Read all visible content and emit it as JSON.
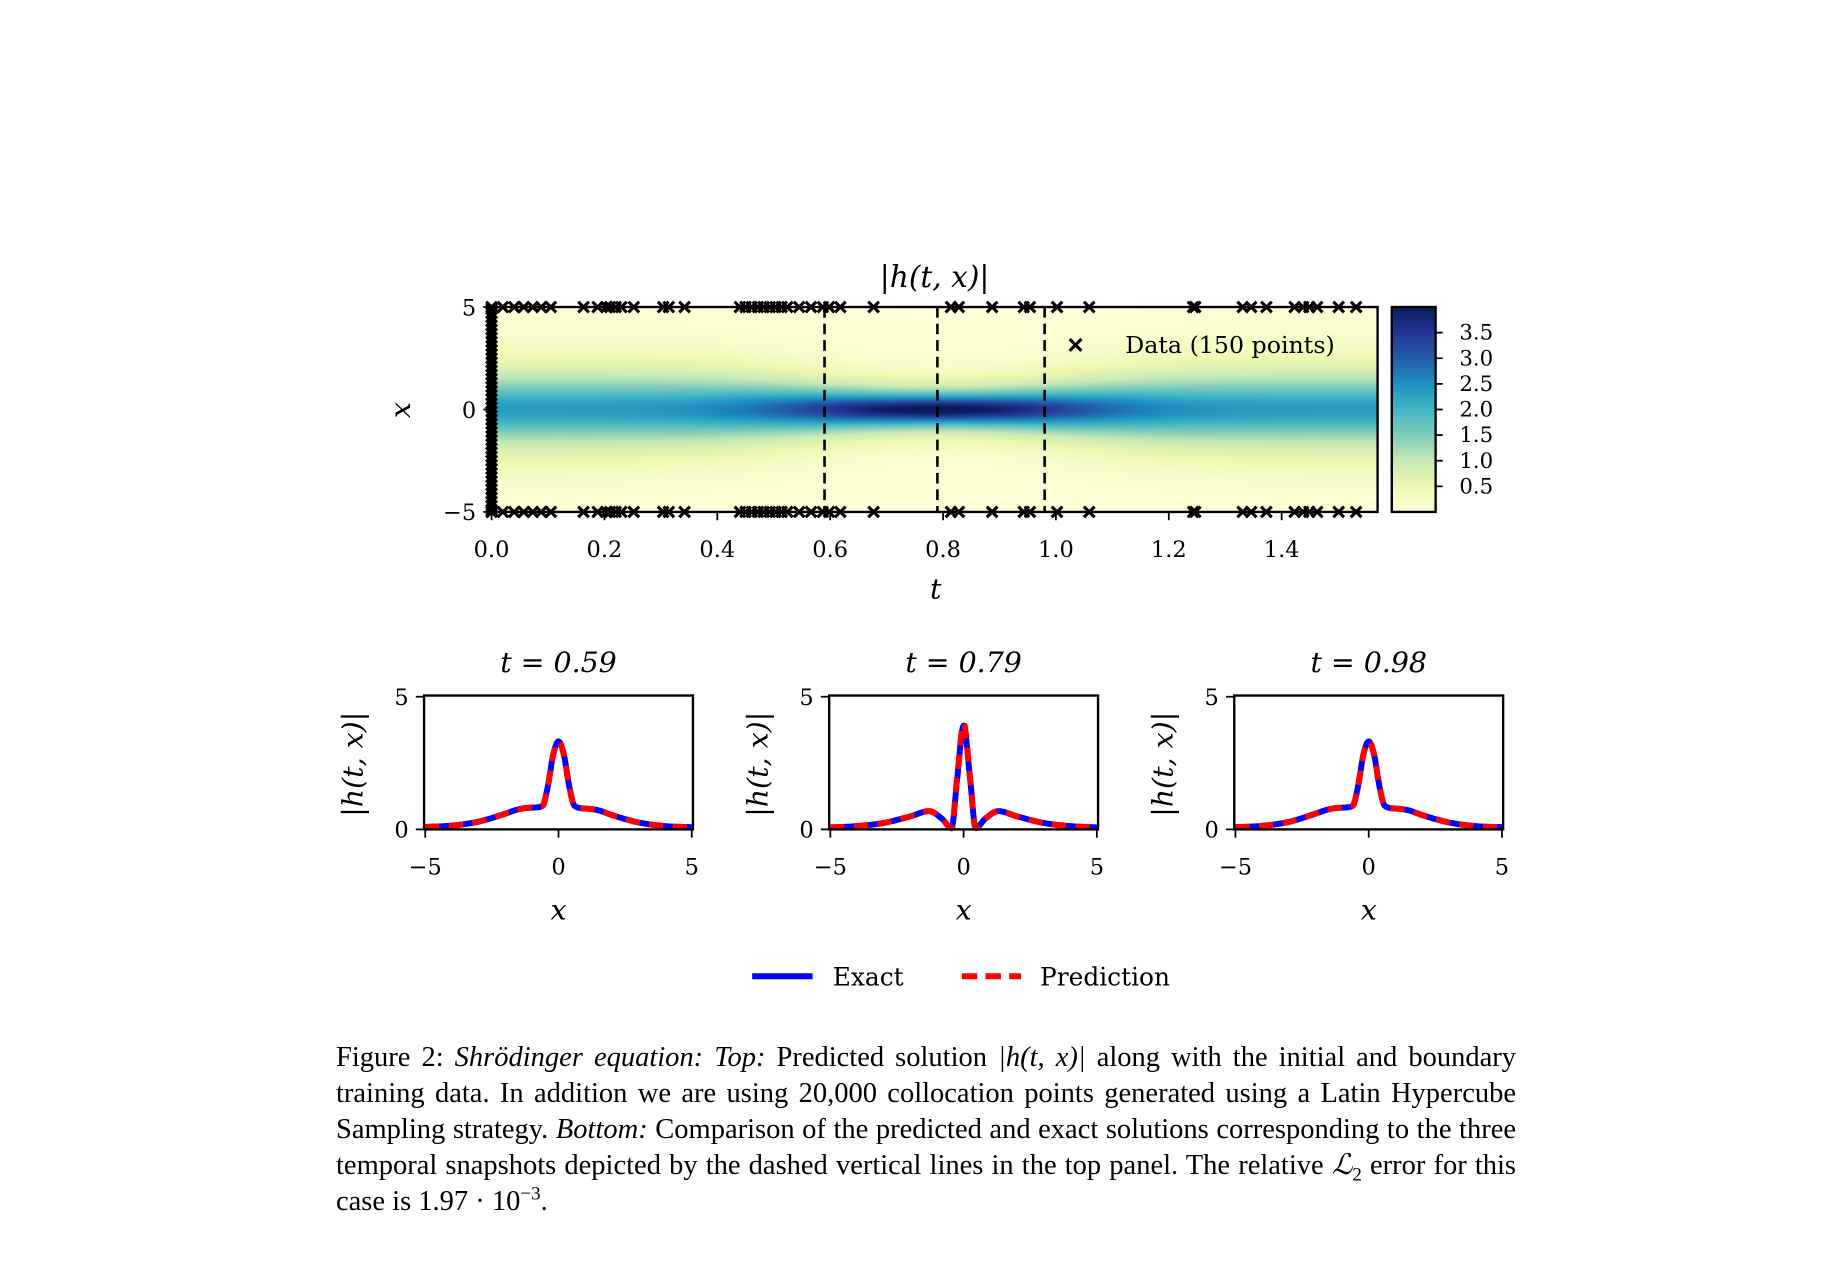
{
  "chart_data": [
    {
      "type": "heatmap",
      "title": "|h(t, x)|",
      "xlabel": "t",
      "ylabel": "x",
      "xlim": [
        0,
        1.57
      ],
      "ylim": [
        -5,
        5
      ],
      "xticks": [
        "0.0",
        "0.2",
        "0.4",
        "0.6",
        "0.8",
        "1.0",
        "1.2",
        "1.4"
      ],
      "xtick_values": [
        0,
        0.2,
        0.4,
        0.6,
        0.8,
        1.0,
        1.2,
        1.4
      ],
      "yticks": [
        "−5",
        "0",
        "5"
      ],
      "ytick_values": [
        -5,
        0,
        5
      ],
      "colormap": "YlGnBu",
      "colorbar": {
        "range": [
          0,
          4.0
        ],
        "ticks": [
          "0.5",
          "1.0",
          "1.5",
          "2.0",
          "2.5",
          "3.0",
          "3.5"
        ],
        "tick_values": [
          0.5,
          1.0,
          1.5,
          2.0,
          2.5,
          3.0,
          3.5
        ]
      },
      "peak_time": 0.79,
      "dashed_lines_t": [
        0.59,
        0.79,
        0.98
      ],
      "legend": {
        "label": "Data (150 points)",
        "marker": "x",
        "placement": "upper-right"
      },
      "data_points": {
        "initial_x_at_t0": [
          -4.9,
          -4.7,
          -4.5,
          -4.3,
          -4.1,
          -3.9,
          -3.7,
          -3.5,
          -3.3,
          -3.1,
          -2.9,
          -2.7,
          -2.5,
          -2.3,
          -2.1,
          -1.9,
          -1.7,
          -1.5,
          -1.3,
          -1.1,
          -0.9,
          -0.7,
          -0.5,
          -0.3,
          -0.1,
          0.1,
          0.3,
          0.5,
          0.7,
          0.9,
          1.1,
          1.3,
          1.5,
          1.7,
          1.9,
          2.1,
          2.3,
          2.5,
          2.7,
          2.9,
          3.1,
          3.3,
          3.5,
          3.7,
          3.9,
          4.1,
          4.3,
          4.5,
          4.7,
          4.9
        ],
        "boundary_t_at_x_pm5": [
          0.0,
          0.02,
          0.04,
          0.057,
          0.073,
          0.088,
          0.105,
          0.163,
          0.188,
          0.203,
          0.21,
          0.22,
          0.23,
          0.252,
          0.304,
          0.314,
          0.342,
          0.44,
          0.45,
          0.461,
          0.472,
          0.482,
          0.493,
          0.503,
          0.514,
          0.524,
          0.545,
          0.566,
          0.587,
          0.598,
          0.618,
          0.677,
          0.814,
          0.828,
          0.887,
          0.943,
          0.954,
          1.002,
          1.059,
          1.243,
          1.247,
          1.331,
          1.346,
          1.373,
          1.423,
          1.438,
          1.449,
          1.463,
          1.501,
          1.532
        ]
      }
    },
    {
      "type": "line",
      "title": "t = 0.59",
      "xlabel": "x",
      "ylabel": "|h(t, x)|",
      "xlim": [
        -5,
        5
      ],
      "ylim": [
        0,
        5
      ],
      "xticks": [
        "−5",
        "0",
        "5"
      ],
      "xtick_values": [
        -5,
        0,
        5
      ],
      "yticks": [
        "0",
        "5"
      ],
      "ytick_values": [
        0,
        5
      ],
      "x": [
        -5,
        -4,
        -3,
        -2,
        -1.5,
        -1,
        -0.6,
        -0.4,
        -0.2,
        0,
        0.2,
        0.4,
        0.6,
        1,
        1.5,
        2,
        3,
        4,
        5
      ],
      "series": [
        {
          "name": "Exact",
          "color": "#0000ff",
          "style": "solid",
          "y": [
            0.05,
            0.1,
            0.25,
            0.55,
            0.72,
            0.78,
            0.85,
            1.6,
            2.8,
            3.3,
            2.8,
            1.6,
            0.85,
            0.75,
            0.68,
            0.5,
            0.22,
            0.08,
            0.04
          ]
        },
        {
          "name": "Prediction",
          "color": "#ff0000",
          "style": "dashed",
          "y": [
            0.05,
            0.1,
            0.25,
            0.55,
            0.72,
            0.78,
            0.85,
            1.6,
            2.8,
            3.3,
            2.8,
            1.6,
            0.85,
            0.75,
            0.68,
            0.5,
            0.22,
            0.08,
            0.04
          ]
        }
      ]
    },
    {
      "type": "line",
      "title": "t = 0.79",
      "xlabel": "x",
      "ylabel": "|h(t, x)|",
      "xlim": [
        -5,
        5
      ],
      "ylim": [
        0,
        5
      ],
      "xticks": [
        "−5",
        "0",
        "5"
      ],
      "xtick_values": [
        -5,
        0,
        5
      ],
      "yticks": [
        "0",
        "5"
      ],
      "ytick_values": [
        0,
        5
      ],
      "x": [
        -5,
        -4,
        -3,
        -2,
        -1.3,
        -0.8,
        -0.45,
        -0.25,
        0,
        0.25,
        0.45,
        0.8,
        1.3,
        2,
        3,
        4,
        5
      ],
      "series": [
        {
          "name": "Exact",
          "color": "#0000ff",
          "style": "solid",
          "y": [
            0.03,
            0.08,
            0.2,
            0.45,
            0.65,
            0.35,
            0.0,
            1.8,
            3.9,
            1.8,
            0.0,
            0.35,
            0.65,
            0.45,
            0.2,
            0.08,
            0.03
          ]
        },
        {
          "name": "Prediction",
          "color": "#ff0000",
          "style": "dashed",
          "y": [
            0.03,
            0.08,
            0.2,
            0.45,
            0.65,
            0.35,
            0.0,
            1.85,
            4.0,
            1.85,
            0.0,
            0.35,
            0.65,
            0.45,
            0.2,
            0.08,
            0.03
          ]
        }
      ]
    },
    {
      "type": "line",
      "title": "t = 0.98",
      "xlabel": "x",
      "ylabel": "|h(t, x)|",
      "xlim": [
        -5,
        5
      ],
      "ylim": [
        0,
        5
      ],
      "xticks": [
        "−5",
        "0",
        "5"
      ],
      "xtick_values": [
        -5,
        0,
        5
      ],
      "yticks": [
        "0",
        "5"
      ],
      "ytick_values": [
        0,
        5
      ],
      "x": [
        -5,
        -4,
        -3,
        -2,
        -1.5,
        -1,
        -0.6,
        -0.4,
        -0.2,
        0,
        0.2,
        0.4,
        0.6,
        1,
        1.5,
        2,
        3,
        4,
        5
      ],
      "series": [
        {
          "name": "Exact",
          "color": "#0000ff",
          "style": "solid",
          "y": [
            0.04,
            0.09,
            0.24,
            0.55,
            0.72,
            0.78,
            0.85,
            1.6,
            2.8,
            3.3,
            2.8,
            1.6,
            0.85,
            0.75,
            0.68,
            0.5,
            0.22,
            0.08,
            0.04
          ]
        },
        {
          "name": "Prediction",
          "color": "#ff0000",
          "style": "dashed",
          "y": [
            0.04,
            0.09,
            0.24,
            0.55,
            0.72,
            0.78,
            0.85,
            1.6,
            2.8,
            3.3,
            2.8,
            1.6,
            0.85,
            0.75,
            0.68,
            0.5,
            0.22,
            0.08,
            0.04
          ]
        }
      ]
    }
  ],
  "legend": {
    "items": [
      {
        "label": "Exact",
        "color": "#0000ff",
        "style": "solid"
      },
      {
        "label": "Prediction",
        "color": "#ff0000",
        "style": "dashed"
      }
    ],
    "placement": "bottom-center"
  },
  "caption": [
    {
      "t": "Figure 2: "
    },
    {
      "t": "Shrödinger equation: Top:",
      "i": true
    },
    {
      "t": " Predicted solution "
    },
    {
      "t": "|h(t, x)|",
      "i": true
    },
    {
      "t": " along with the initial and boundary training data. In addition we are using 20,000 collocation points generated using a Latin Hypercube Sampling strategy.  "
    },
    {
      "t": "Bottom:",
      "i": true
    },
    {
      "t": " Comparison of the predicted and exact solutions corresponding to the three temporal snapshots depicted by the dashed vertical lines in the top panel. The relative "
    },
    {
      "t": "ℒ",
      "i": true
    },
    {
      "t": "2",
      "sub": true
    },
    {
      "t": " error for this case is 1.97 · 10"
    },
    {
      "t": "−3",
      "sup": true
    },
    {
      "t": "."
    }
  ]
}
